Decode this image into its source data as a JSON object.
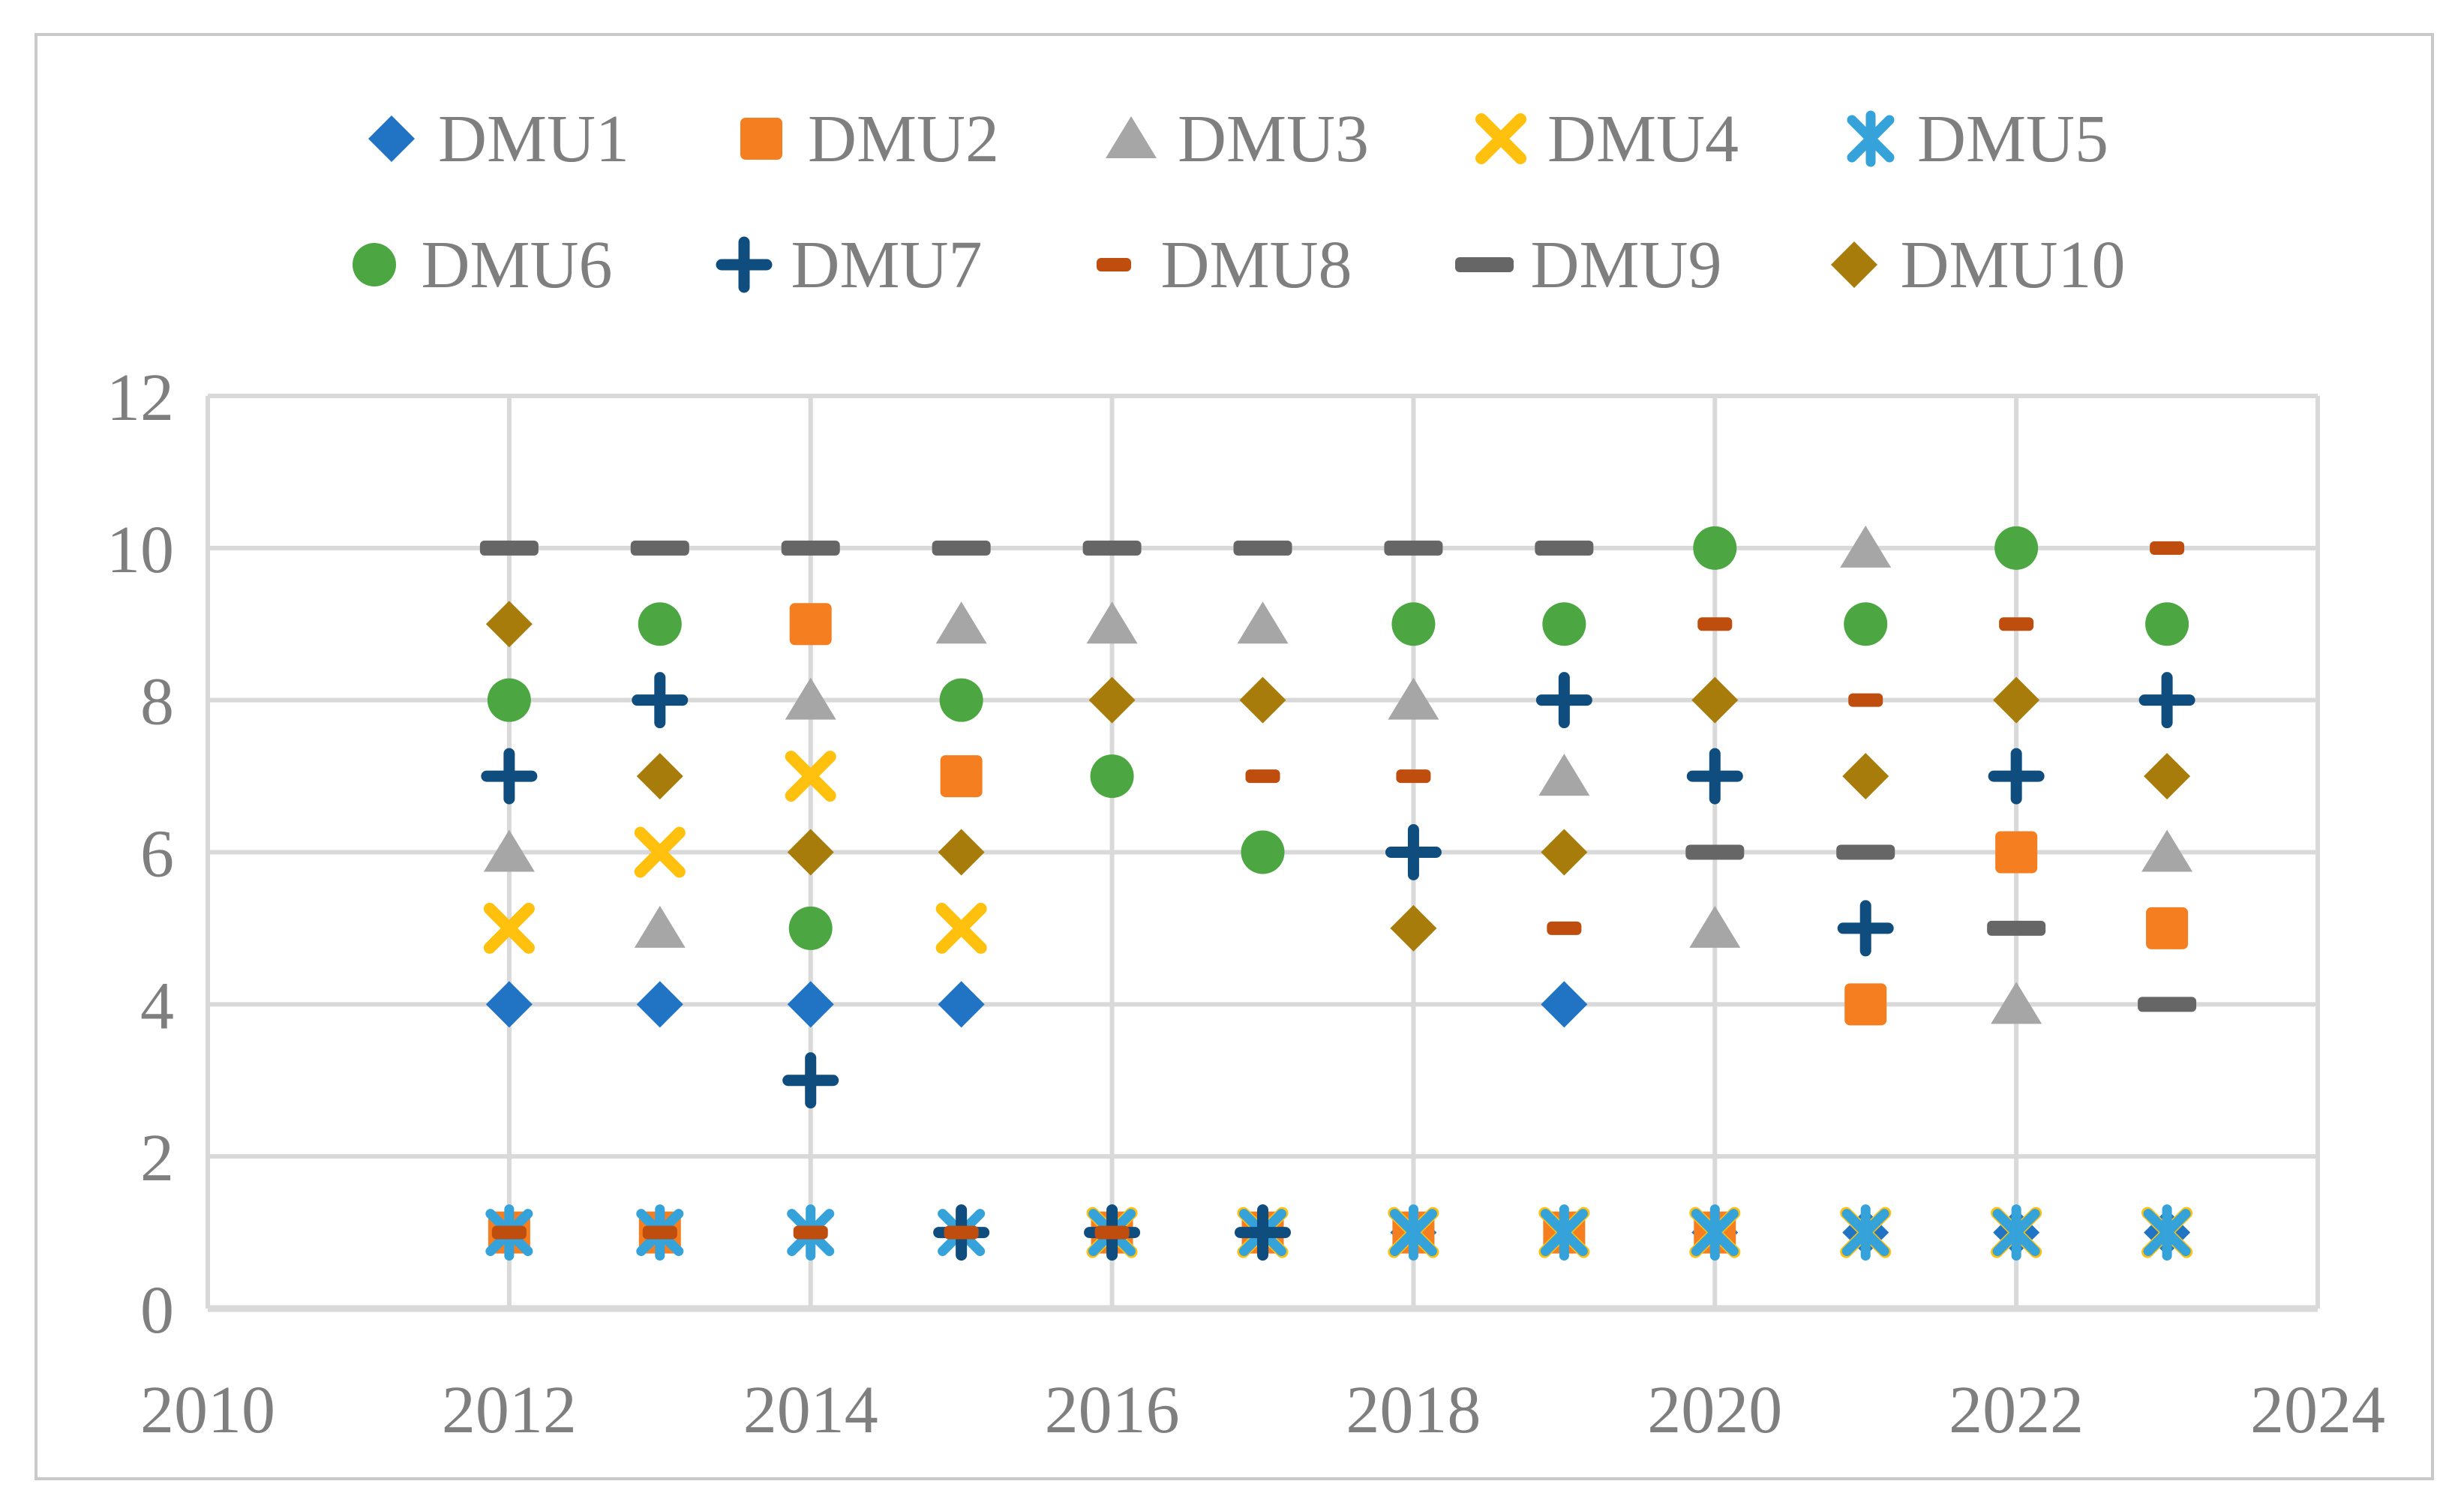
{
  "figure": {
    "background": "#ffffff",
    "border_color": "#c9c9c9",
    "text_color": "#7f7f7f",
    "grid_color": "#d9d9d9"
  },
  "chart_data": {
    "type": "scatter",
    "title": "",
    "xlabel": "",
    "ylabel": "",
    "grid": true,
    "legend_position": "top",
    "xlim": [
      2010,
      2024
    ],
    "ylim": [
      0,
      12
    ],
    "x_ticks": [
      "2010",
      "2012",
      "2014",
      "2016",
      "2018",
      "2020",
      "2022",
      "2024"
    ],
    "y_ticks": [
      "0",
      "2",
      "4",
      "6",
      "8",
      "10",
      "12"
    ],
    "x": [
      2012,
      2013,
      2014,
      2015,
      2016,
      2017,
      2018,
      2019,
      2020,
      2021,
      2022,
      2023
    ],
    "series": [
      {
        "name": "DMU1",
        "marker": "diamond",
        "color": "#2173c4",
        "values": [
          4,
          4,
          4,
          4,
          1,
          1,
          1,
          4,
          1,
          1,
          1,
          1
        ]
      },
      {
        "name": "DMU2",
        "marker": "square",
        "color": "#f57e20",
        "values": [
          1,
          1,
          9,
          7,
          1,
          1,
          1,
          1,
          1,
          4,
          6,
          5
        ]
      },
      {
        "name": "DMU3",
        "marker": "triangle",
        "color": "#a6a6a6",
        "values": [
          6,
          5,
          8,
          9,
          9,
          9,
          8,
          7,
          5,
          10,
          4,
          6
        ]
      },
      {
        "name": "DMU4",
        "marker": "xmark",
        "color": "#ffc10d",
        "values": [
          5,
          6,
          7,
          5,
          1,
          1,
          1,
          1,
          1,
          1,
          1,
          1
        ]
      },
      {
        "name": "DMU5",
        "marker": "star",
        "color": "#35a2da",
        "values": [
          1,
          1,
          1,
          1,
          1,
          1,
          1,
          1,
          1,
          1,
          1,
          1
        ]
      },
      {
        "name": "DMU6",
        "marker": "circle",
        "color": "#4ca642",
        "values": [
          8,
          9,
          5,
          8,
          7,
          6,
          9,
          9,
          10,
          9,
          10,
          9
        ]
      },
      {
        "name": "DMU7",
        "marker": "plus",
        "color": "#104d7f",
        "values": [
          7,
          8,
          3,
          1,
          1,
          1,
          6,
          8,
          7,
          5,
          7,
          8
        ]
      },
      {
        "name": "DMU8",
        "marker": "dash-short",
        "color": "#bf4d0d",
        "values": [
          1,
          1,
          1,
          1,
          1,
          7,
          7,
          5,
          9,
          8,
          9,
          10
        ]
      },
      {
        "name": "DMU9",
        "marker": "dash-long",
        "color": "#666666",
        "values": [
          10,
          10,
          10,
          10,
          10,
          10,
          10,
          10,
          6,
          6,
          5,
          4
        ]
      },
      {
        "name": "DMU10",
        "marker": "diamond",
        "color": "#a77c0b",
        "values": [
          9,
          7,
          6,
          6,
          8,
          8,
          5,
          6,
          8,
          7,
          8,
          7
        ]
      }
    ],
    "legend_rows": [
      [
        0,
        1,
        2,
        3,
        4
      ],
      [
        5,
        6,
        7,
        8,
        9
      ]
    ]
  }
}
